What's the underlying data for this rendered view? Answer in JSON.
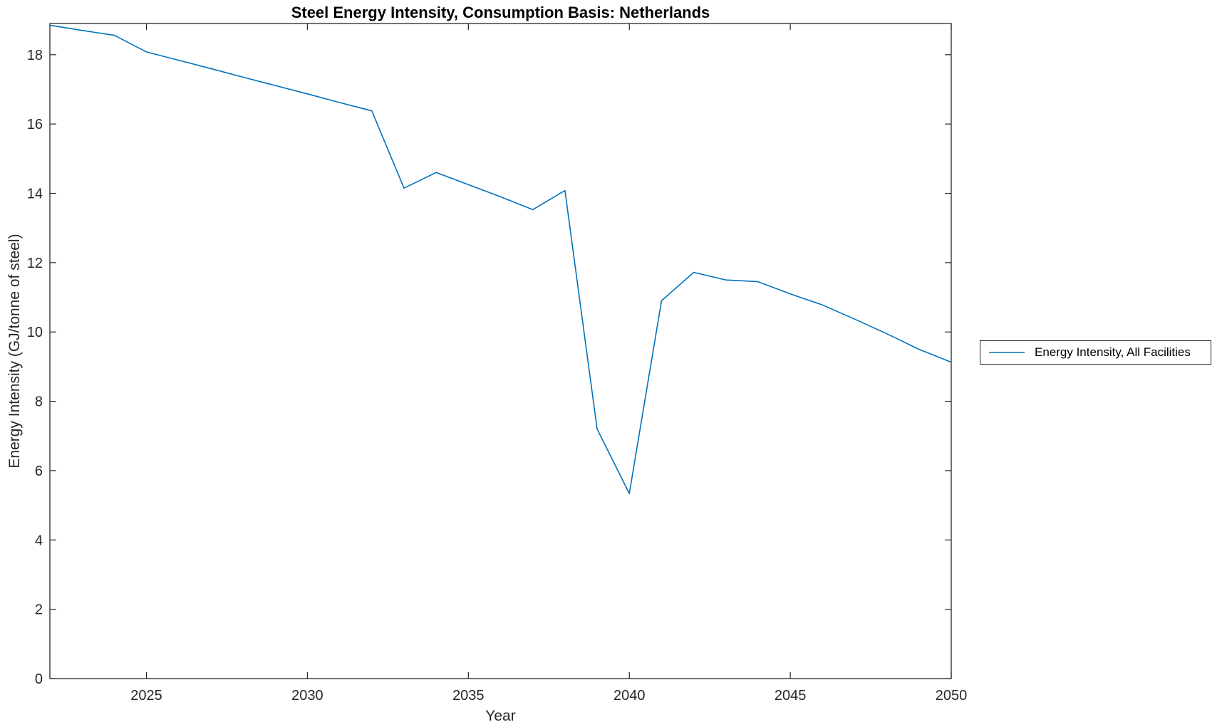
{
  "chart_data": {
    "type": "line",
    "title": "Steel Energy Intensity, Consumption Basis: Netherlands",
    "xlabel": "Year",
    "ylabel": "Energy Intensity (GJ/tonne of steel)",
    "xlim": [
      2022,
      2050
    ],
    "ylim": [
      0,
      18.9
    ],
    "xticks": [
      2025,
      2030,
      2035,
      2040,
      2045,
      2050
    ],
    "yticks": [
      0,
      2,
      4,
      6,
      8,
      10,
      12,
      14,
      16,
      18
    ],
    "grid": false,
    "box": true,
    "tick_direction": "in",
    "axis_color": "#262626",
    "legend_position": "right-outside",
    "series": [
      {
        "name": "Energy Intensity, All Facilities",
        "color": "#0072BD",
        "x": [
          2022,
          2023,
          2024,
          2025,
          2026,
          2027,
          2028,
          2029,
          2030,
          2031,
          2032,
          2033,
          2034,
          2035,
          2036,
          2037,
          2038,
          2039,
          2040,
          2041,
          2042,
          2043,
          2044,
          2045,
          2046,
          2047,
          2048,
          2049,
          2050
        ],
        "values": [
          18.85,
          18.7,
          18.56,
          18.08,
          17.84,
          17.6,
          17.35,
          17.11,
          16.87,
          16.62,
          16.38,
          14.15,
          14.6,
          14.25,
          13.9,
          13.53,
          14.08,
          7.2,
          5.34,
          10.9,
          11.72,
          11.5,
          11.45,
          11.1,
          10.78,
          10.37,
          9.95,
          9.5,
          9.13
        ]
      }
    ]
  }
}
